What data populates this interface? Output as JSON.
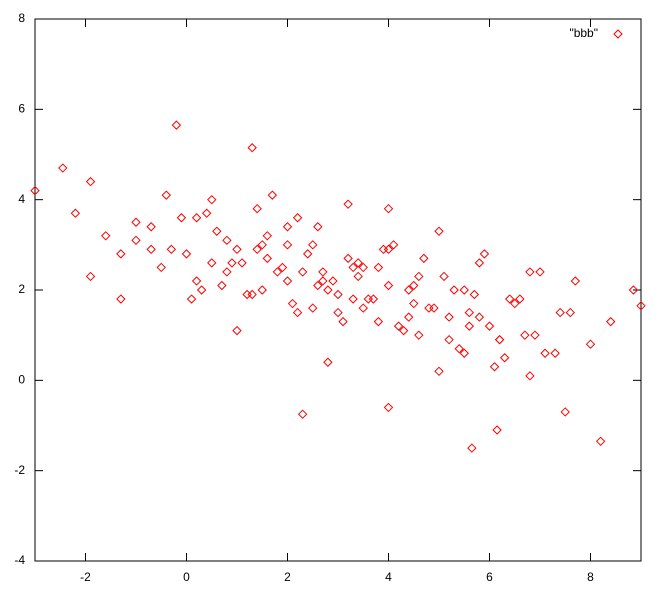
{
  "chart_data": {
    "type": "scatter",
    "x": [
      -3,
      -2.45,
      -0.2,
      1.3,
      5.65,
      8.2,
      9,
      8.85,
      7.5,
      6.15,
      2.3,
      4,
      -2.2,
      -1.9,
      -1.6,
      -1.3,
      -1.0,
      -0.7,
      -0.4,
      -0.1,
      0.2,
      0.5,
      0.8,
      1.1,
      1.4,
      1.7,
      2.0,
      2.3,
      2.6,
      2.9,
      3.2,
      3.5,
      3.8,
      4.1,
      4.4,
      4.7,
      5.0,
      5.3,
      5.6,
      5.9,
      6.2,
      6.5,
      6.8,
      7.1,
      7.4,
      7.7,
      8.0,
      8.4,
      -1.9,
      -1.3,
      -0.7,
      -0.3,
      0.1,
      0.4,
      0.7,
      1.0,
      1.3,
      1.6,
      1.9,
      2.2,
      2.5,
      2.8,
      3.1,
      3.4,
      3.7,
      4.0,
      4.3,
      4.6,
      4.9,
      5.2,
      5.5,
      5.8,
      6.1,
      6.4,
      6.7,
      7.0,
      7.3,
      7.6,
      -1.0,
      -0.5,
      0.0,
      0.3,
      0.6,
      0.9,
      1.2,
      1.5,
      1.8,
      2.1,
      2.4,
      2.7,
      3.0,
      3.3,
      3.6,
      3.9,
      4.2,
      4.5,
      4.8,
      5.1,
      5.4,
      5.7,
      6.0,
      6.3,
      6.6,
      6.9,
      0.2,
      0.8,
      1.4,
      2.0,
      2.6,
      3.2,
      3.8,
      4.4,
      5.0,
      5.6,
      6.2,
      6.8,
      1.0,
      1.6,
      2.2,
      2.8,
      3.4,
      4.0,
      4.6,
      5.2,
      5.8,
      0.5,
      1.5,
      2.5,
      3.5,
      4.5,
      5.5,
      2.0,
      3.0,
      4.0,
      3.3,
      2.7
    ],
    "series": [
      {
        "name": "\"bbb\"",
        "color": "#ff0000",
        "values": [
          4.2,
          4.7,
          5.65,
          5.15,
          -1.5,
          -1.35,
          1.65,
          2.0,
          -0.7,
          -1.1,
          -0.75,
          -0.6,
          3.7,
          4.4,
          3.2,
          2.8,
          3.5,
          2.9,
          4.1,
          3.6,
          2.2,
          4.0,
          3.1,
          2.6,
          3.8,
          4.1,
          3.0,
          2.4,
          3.4,
          2.2,
          3.9,
          1.6,
          2.5,
          3.0,
          1.4,
          2.7,
          3.3,
          2.0,
          1.2,
          2.8,
          0.9,
          1.7,
          2.4,
          0.6,
          1.5,
          2.2,
          0.8,
          1.3,
          2.3,
          1.8,
          3.4,
          2.9,
          1.8,
          3.7,
          2.1,
          2.9,
          1.9,
          3.2,
          2.5,
          1.5,
          3.0,
          2.0,
          1.3,
          2.6,
          1.8,
          2.9,
          1.1,
          2.3,
          1.6,
          0.9,
          2.0,
          1.4,
          0.3,
          1.8,
          1.0,
          2.4,
          0.6,
          1.5,
          3.1,
          2.5,
          2.8,
          2.0,
          3.3,
          2.6,
          1.9,
          3.0,
          2.4,
          1.7,
          2.8,
          2.2,
          1.5,
          2.5,
          1.8,
          2.9,
          1.2,
          2.1,
          1.6,
          2.3,
          0.7,
          1.9,
          1.2,
          0.5,
          1.8,
          1.0,
          3.6,
          2.4,
          2.9,
          3.4,
          2.1,
          2.7,
          1.3,
          2.0,
          0.2,
          1.5,
          0.9,
          0.1,
          1.1,
          2.7,
          3.6,
          0.4,
          2.3,
          3.8,
          1.0,
          1.4,
          2.6,
          2.6,
          2.0,
          1.6,
          2.5,
          1.7,
          0.6,
          2.2,
          1.9,
          2.1,
          1.8,
          2.4
        ]
      }
    ],
    "xlim": [
      -3,
      9
    ],
    "ylim": [
      -4,
      8
    ],
    "xticks": [
      -2,
      0,
      2,
      4,
      6,
      8
    ],
    "yticks": [
      -4,
      -2,
      0,
      2,
      4,
      6,
      8
    ],
    "legend": "top right"
  }
}
